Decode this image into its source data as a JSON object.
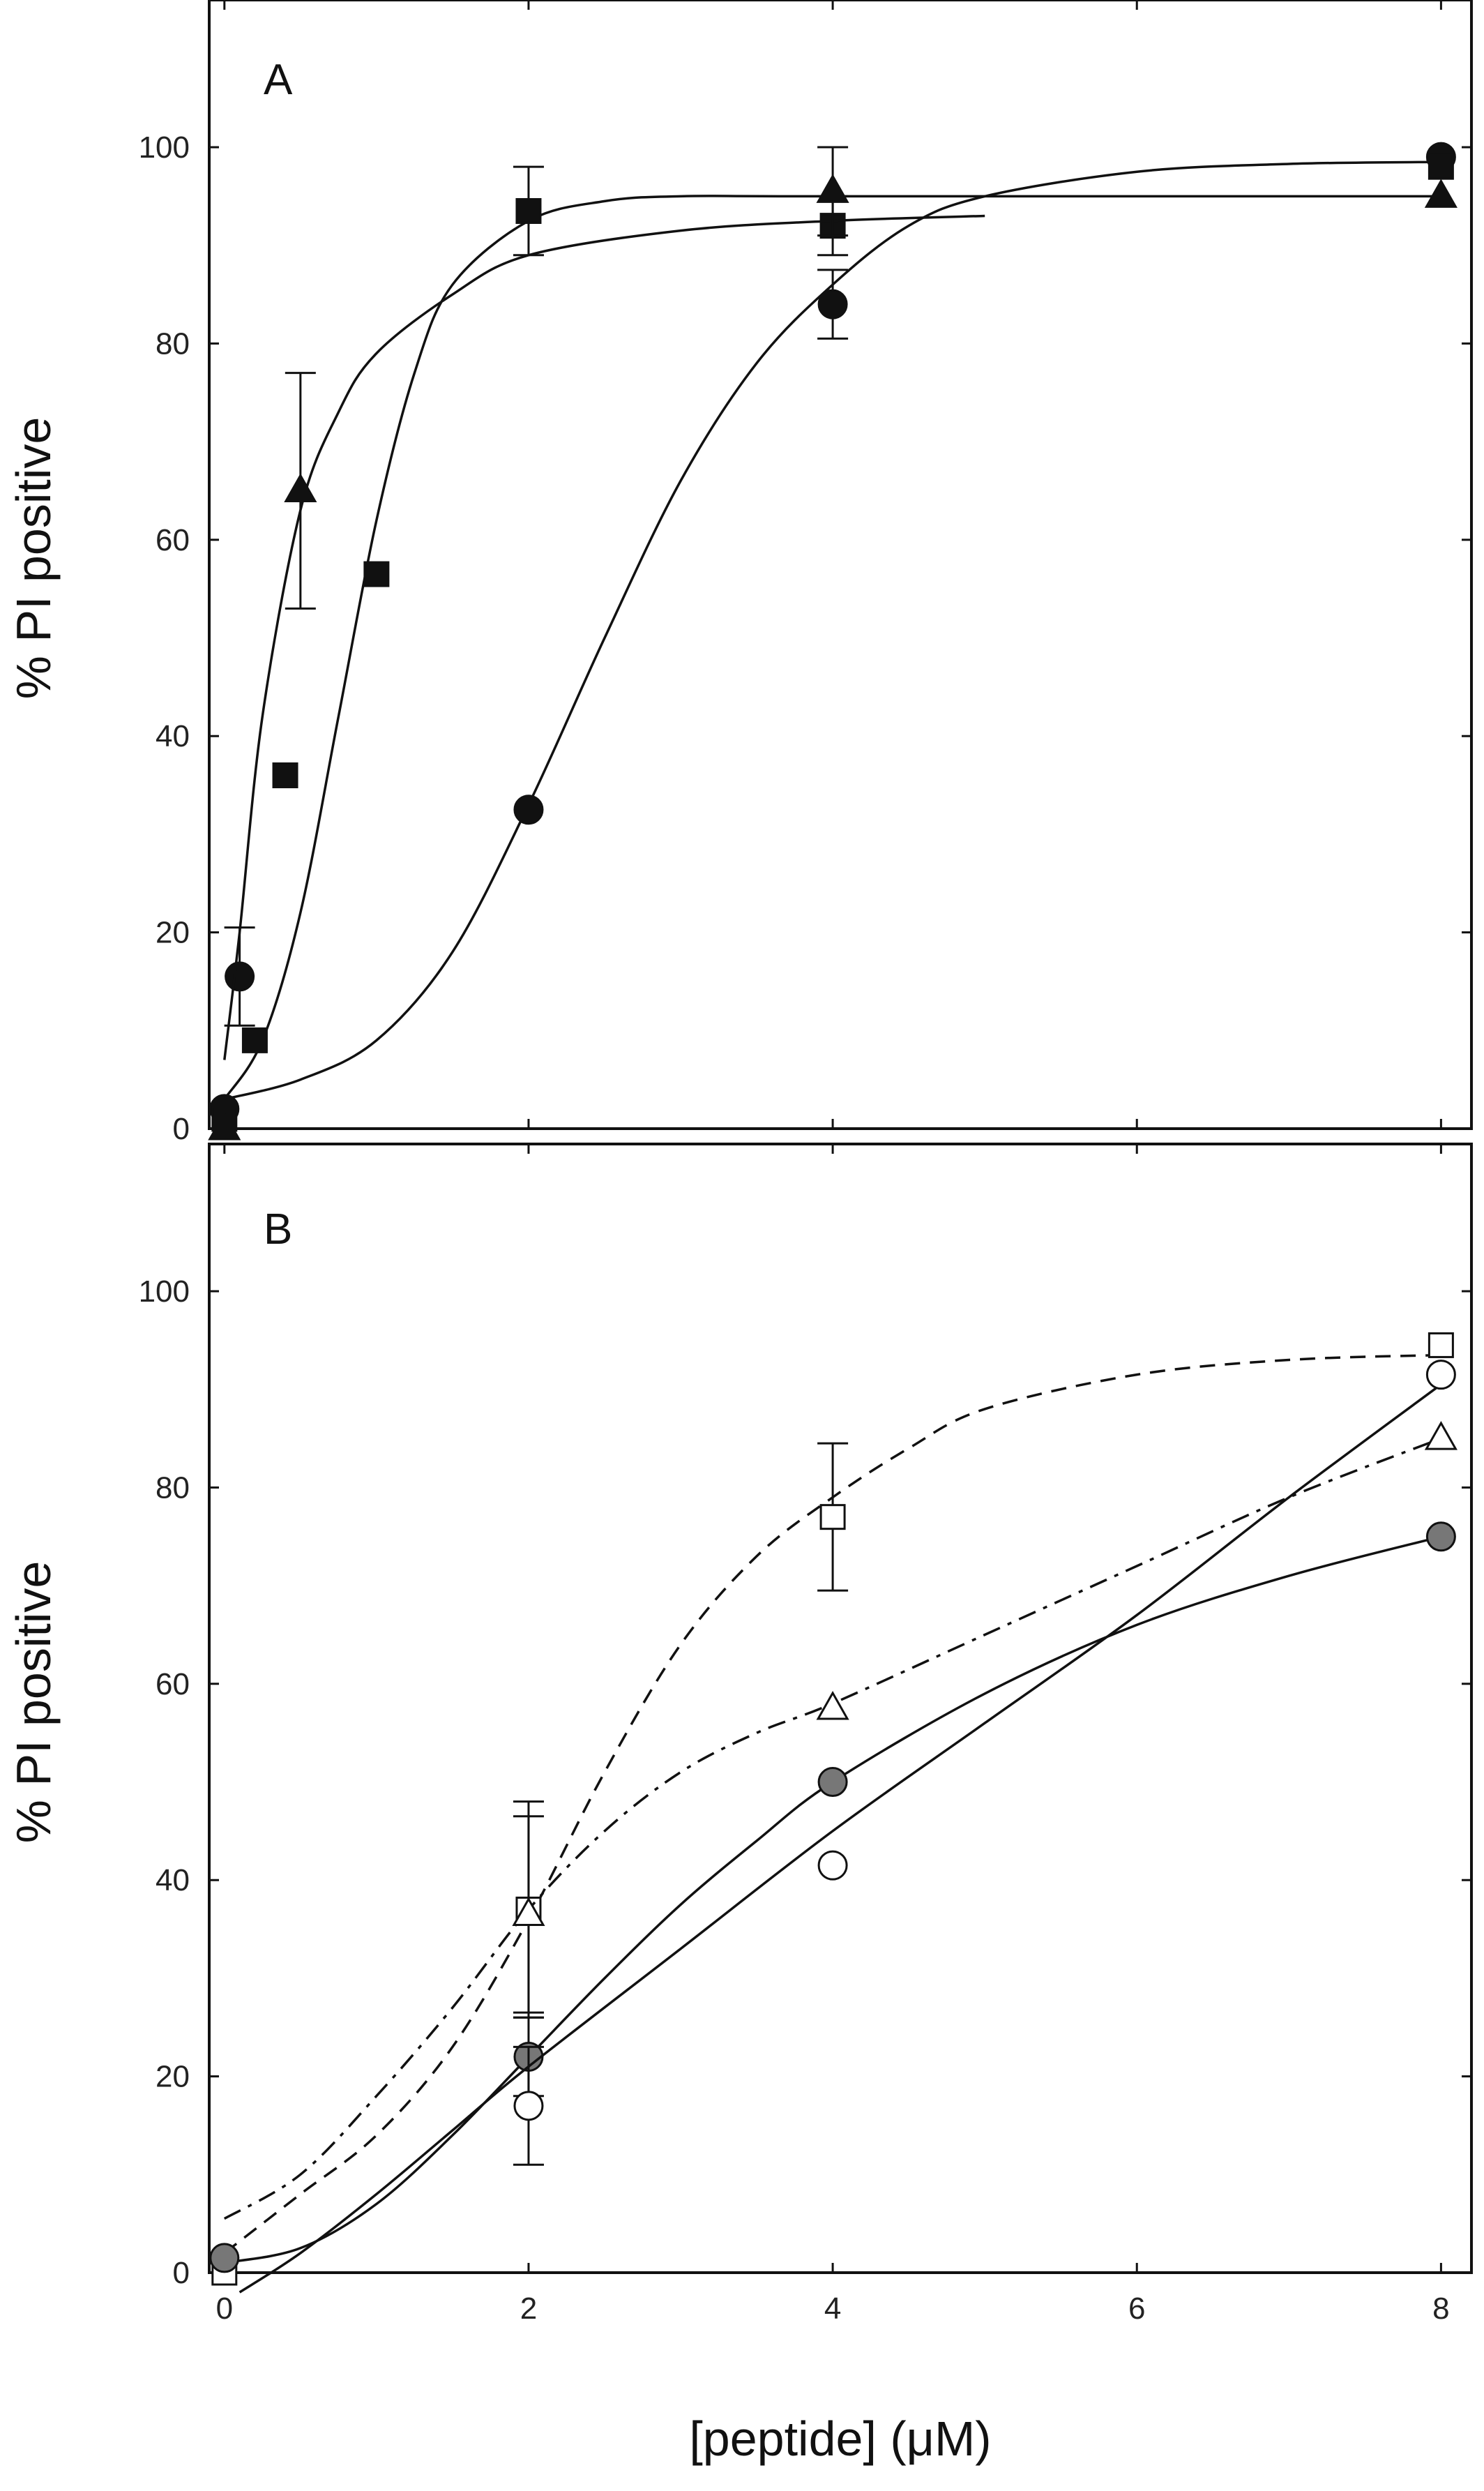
{
  "chart_data": [
    {
      "type": "scatter",
      "panel_label": "A",
      "ylabel": "% PI positive",
      "xlabel": "",
      "xlim": [
        -0.1,
        8.2
      ],
      "ylim": [
        0,
        115
      ],
      "x_ticks": [
        "0",
        "2",
        "4",
        "6",
        "8"
      ],
      "x_tick_labels_shown": false,
      "y_ticks": [
        "0",
        "20",
        "40",
        "60",
        "80",
        "100"
      ],
      "grid": false,
      "series": [
        {
          "marker": "filled-circle",
          "x": [
            0,
            0.1,
            2,
            4,
            8
          ],
          "y": [
            2,
            15.5,
            32.5,
            84,
            99
          ],
          "err": [
            0,
            5,
            0,
            3.5,
            0
          ],
          "fit": [
            [
              0,
              3
            ],
            [
              0.5,
              5
            ],
            [
              1,
              9
            ],
            [
              1.5,
              18
            ],
            [
              2,
              33
            ],
            [
              2.5,
              50
            ],
            [
              3,
              66
            ],
            [
              3.5,
              78
            ],
            [
              4,
              86
            ],
            [
              4.5,
              92
            ],
            [
              5,
              95
            ],
            [
              6,
              97.5
            ],
            [
              7,
              98.3
            ],
            [
              8,
              98.5
            ]
          ]
        },
        {
          "marker": "filled-square",
          "x": [
            0,
            0.2,
            0.4,
            1,
            2,
            4,
            8
          ],
          "y": [
            1,
            9,
            36,
            56.5,
            93.5,
            92,
            98
          ],
          "err": [
            0,
            0,
            0,
            0,
            4.5,
            3,
            0
          ],
          "fit": [
            [
              0,
              3
            ],
            [
              0.25,
              9
            ],
            [
              0.5,
              22
            ],
            [
              0.75,
              42
            ],
            [
              1,
              62
            ],
            [
              1.25,
              77
            ],
            [
              1.5,
              86
            ],
            [
              2,
              92.5
            ],
            [
              2.5,
              94.5
            ],
            [
              3,
              95
            ],
            [
              4,
              95
            ],
            [
              8,
              95
            ]
          ]
        },
        {
          "marker": "filled-triangle",
          "x": [
            0,
            0.5,
            4,
            8
          ],
          "y": [
            0,
            65,
            95.5,
            95
          ],
          "err": [
            0,
            12,
            4.5,
            0
          ],
          "fit": [
            [
              0,
              7
            ],
            [
              0.1,
              20
            ],
            [
              0.25,
              42
            ],
            [
              0.5,
              63
            ],
            [
              0.75,
              73
            ],
            [
              1,
              79
            ],
            [
              1.5,
              85
            ],
            [
              2,
              89
            ],
            [
              3,
              91.5
            ],
            [
              4,
              92.5
            ],
            [
              5,
              93
            ]
          ]
        }
      ]
    },
    {
      "type": "scatter",
      "panel_label": "B",
      "ylabel": "% PI positive",
      "xlabel": "[peptide] (μM)",
      "xlim": [
        -0.1,
        8.2
      ],
      "ylim": [
        0,
        115
      ],
      "x_ticks": [
        "0",
        "2",
        "4",
        "6",
        "8"
      ],
      "x_tick_labels_shown": true,
      "y_ticks": [
        "0",
        "20",
        "40",
        "60",
        "80",
        "100"
      ],
      "grid": false,
      "series": [
        {
          "marker": "open-square",
          "line": "dashed",
          "x": [
            0,
            2,
            4,
            8
          ],
          "y": [
            0,
            37,
            77,
            94.5
          ],
          "err": [
            0,
            11,
            7.5,
            0
          ],
          "fit": [
            [
              0,
              2
            ],
            [
              0.5,
              8
            ],
            [
              1,
              14
            ],
            [
              1.5,
              23
            ],
            [
              2,
              36
            ],
            [
              2.5,
              51
            ],
            [
              3,
              64
            ],
            [
              3.5,
              73
            ],
            [
              4,
              79
            ],
            [
              4.5,
              84
            ],
            [
              5,
              88
            ],
            [
              6,
              91.5
            ],
            [
              7,
              93
            ],
            [
              8,
              93.5
            ]
          ]
        },
        {
          "marker": "open-triangle",
          "line": "dash-dot",
          "x": [
            2,
            4,
            8
          ],
          "y": [
            36.5,
            57.5,
            85
          ],
          "err": [
            10,
            0,
            0
          ],
          "fit": [
            [
              0,
              5.5
            ],
            [
              0.5,
              10
            ],
            [
              1,
              18
            ],
            [
              1.5,
              27
            ],
            [
              2,
              37
            ],
            [
              2.5,
              45
            ],
            [
              3,
              51
            ],
            [
              3.5,
              55
            ],
            [
              4,
              58
            ],
            [
              5,
              65
            ],
            [
              6,
              72
            ],
            [
              7,
              79
            ],
            [
              8,
              85
            ]
          ]
        },
        {
          "marker": "grey-circle",
          "line": "solid",
          "x": [
            0,
            2,
            4,
            8
          ],
          "y": [
            1.5,
            22,
            50,
            75
          ],
          "err": [
            0,
            4,
            0,
            0
          ],
          "fit": [
            [
              0,
              1
            ],
            [
              0.5,
              2.5
            ],
            [
              1,
              7
            ],
            [
              1.5,
              14
            ],
            [
              2,
              22
            ],
            [
              2.5,
              30
            ],
            [
              3,
              37.5
            ],
            [
              3.5,
              44
            ],
            [
              4,
              50
            ],
            [
              5,
              59
            ],
            [
              6,
              66
            ],
            [
              7,
              71
            ],
            [
              8,
              75
            ]
          ]
        },
        {
          "marker": "open-circle",
          "line": "solid",
          "x": [
            2,
            4,
            8
          ],
          "y": [
            17,
            41.5,
            91.5
          ],
          "err": [
            6,
            0,
            0
          ],
          "fit": [
            [
              0.1,
              -2
            ],
            [
              0.5,
              2
            ],
            [
              1,
              8
            ],
            [
              1.5,
              14.5
            ],
            [
              2,
              21
            ],
            [
              3,
              33
            ],
            [
              4,
              45
            ],
            [
              5,
              56
            ],
            [
              6,
              67
            ],
            [
              7,
              79
            ],
            [
              8,
              90.5
            ]
          ]
        }
      ]
    }
  ]
}
